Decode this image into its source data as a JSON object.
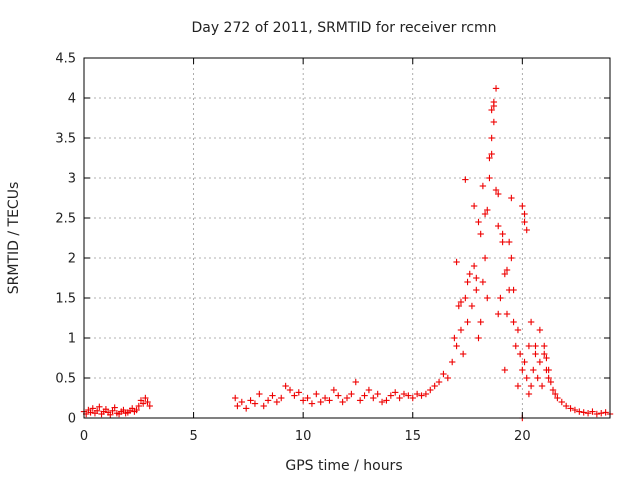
{
  "chart_data": {
    "type": "scatter",
    "title": "Day 272 of 2011, SRMTID for receiver rcmn",
    "xlabel": "GPS time / hours",
    "ylabel": "SRMTID / TECUs",
    "xlim": [
      0,
      24
    ],
    "ylim": [
      0,
      4.5
    ],
    "xticks": [
      "0",
      "5",
      "10",
      "15",
      "20"
    ],
    "yticks": [
      "0",
      "0.5",
      "1",
      "1.5",
      "2",
      "2.5",
      "3",
      "3.5",
      "4",
      "4.5"
    ],
    "grid": true,
    "marker": "plus",
    "color": "#ee0000",
    "series": [
      {
        "x": [
          0.0,
          0.1,
          0.2,
          0.3,
          0.4,
          0.5,
          0.6,
          0.7,
          0.8,
          0.9,
          1.0,
          1.1,
          1.2,
          1.3,
          1.4,
          1.5,
          1.6,
          1.7,
          1.8,
          1.9,
          2.0,
          2.1,
          2.2,
          2.3,
          2.4,
          2.5,
          2.6,
          2.7,
          2.8,
          2.9,
          3.0,
          6.9,
          7.0,
          7.2,
          7.4,
          7.6,
          7.8,
          8.0,
          8.2,
          8.4,
          8.6,
          8.8,
          9.0,
          9.2,
          9.4,
          9.6,
          9.8,
          10.0,
          10.2,
          10.4,
          10.6,
          10.8,
          11.0,
          11.2,
          11.4,
          11.6,
          11.8,
          12.0,
          12.2,
          12.4,
          12.6,
          12.8,
          13.0,
          13.2,
          13.4,
          13.6,
          13.8,
          14.0,
          14.2,
          14.4,
          14.6,
          14.8,
          15.0,
          15.2,
          15.4,
          15.6,
          15.8,
          16.0,
          16.2,
          16.4,
          16.6,
          16.8,
          16.9,
          17.0,
          17.1,
          17.2,
          17.3,
          17.4,
          17.5,
          17.6,
          17.7,
          17.8,
          17.9,
          18.0,
          18.1,
          18.2,
          18.3,
          18.4,
          18.5,
          18.6,
          18.7,
          18.8,
          18.9,
          19.0,
          19.1,
          19.2,
          19.3,
          19.4,
          19.5,
          19.6,
          19.7,
          19.8,
          19.9,
          20.0,
          20.1,
          20.2,
          20.3,
          20.4,
          20.5,
          20.6,
          20.7,
          20.8,
          20.9,
          21.0,
          21.1,
          21.2,
          21.3,
          21.4,
          21.5,
          21.6,
          21.8,
          22.0,
          22.2,
          22.4,
          22.6,
          22.8,
          23.0,
          23.2,
          23.4,
          23.6,
          23.8,
          24.0,
          17.0,
          17.4,
          17.8,
          18.0,
          18.2,
          18.3,
          18.5,
          18.6,
          18.6,
          18.7,
          18.7,
          18.8,
          18.9,
          19.1,
          19.3,
          19.4,
          19.5,
          20.0,
          20.1,
          20.1,
          20.2,
          20.4,
          20.6,
          20.8,
          21.0,
          21.1,
          21.2,
          20.0,
          17.5,
          18.4,
          18.9,
          19.6,
          17.2,
          17.9,
          18.1,
          19.2,
          19.8,
          20.3
        ],
        "y": [
          0.08,
          0.05,
          0.1,
          0.07,
          0.12,
          0.06,
          0.09,
          0.14,
          0.05,
          0.08,
          0.11,
          0.07,
          0.04,
          0.09,
          0.13,
          0.06,
          0.05,
          0.08,
          0.1,
          0.06,
          0.07,
          0.09,
          0.12,
          0.08,
          0.1,
          0.15,
          0.22,
          0.18,
          0.25,
          0.2,
          0.15,
          0.25,
          0.15,
          0.2,
          0.12,
          0.22,
          0.18,
          0.3,
          0.15,
          0.22,
          0.28,
          0.2,
          0.25,
          0.4,
          0.35,
          0.28,
          0.32,
          0.22,
          0.25,
          0.18,
          0.3,
          0.2,
          0.25,
          0.22,
          0.35,
          0.28,
          0.2,
          0.25,
          0.3,
          0.45,
          0.22,
          0.28,
          0.35,
          0.25,
          0.3,
          0.2,
          0.22,
          0.28,
          0.32,
          0.25,
          0.3,
          0.28,
          0.25,
          0.3,
          0.28,
          0.3,
          0.35,
          0.4,
          0.45,
          0.55,
          0.5,
          0.7,
          1.0,
          0.9,
          1.4,
          1.1,
          0.8,
          1.5,
          1.2,
          1.8,
          1.4,
          1.9,
          1.6,
          1.0,
          2.3,
          1.7,
          2.0,
          2.6,
          3.0,
          3.3,
          3.9,
          4.12,
          2.8,
          1.5,
          2.2,
          1.8,
          1.3,
          1.6,
          2.0,
          1.2,
          0.9,
          1.1,
          0.8,
          0.6,
          0.7,
          0.5,
          0.9,
          0.4,
          0.6,
          0.8,
          0.5,
          0.7,
          0.4,
          0.9,
          0.6,
          0.5,
          0.45,
          0.35,
          0.3,
          0.25,
          0.2,
          0.15,
          0.12,
          0.1,
          0.08,
          0.07,
          0.06,
          0.08,
          0.05,
          0.06,
          0.07,
          0.05,
          1.95,
          2.98,
          2.65,
          2.45,
          2.9,
          2.55,
          3.25,
          3.5,
          3.85,
          3.7,
          3.95,
          2.85,
          2.4,
          2.3,
          1.85,
          2.2,
          2.75,
          2.65,
          2.55,
          2.45,
          2.35,
          1.2,
          0.9,
          1.1,
          0.8,
          0.75,
          0.6,
          0.0,
          1.7,
          1.5,
          1.3,
          1.6,
          1.45,
          1.75,
          1.2,
          0.6,
          0.4,
          0.3
        ]
      }
    ]
  }
}
